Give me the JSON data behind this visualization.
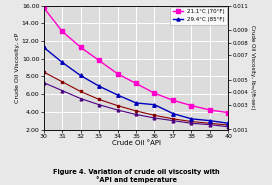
{
  "x": [
    30,
    31,
    32,
    33,
    34,
    35,
    36,
    37,
    38,
    39,
    40
  ],
  "y_pink": [
    15.8,
    13.1,
    11.3,
    9.8,
    8.3,
    7.2,
    6.1,
    5.3,
    4.7,
    4.2,
    3.9
  ],
  "y_blue": [
    11.3,
    9.6,
    8.1,
    6.9,
    5.9,
    5.0,
    4.8,
    3.8,
    3.2,
    3.0,
    2.7
  ],
  "y_darkred": [
    8.5,
    7.4,
    6.3,
    5.4,
    4.7,
    4.1,
    3.6,
    3.2,
    2.9,
    2.7,
    2.5
  ],
  "y_darkblue": [
    7.3,
    6.4,
    5.5,
    4.8,
    4.2,
    3.7,
    3.3,
    3.0,
    2.7,
    2.55,
    2.3
  ],
  "color_pink": "#FF00CC",
  "color_blue": "#0000BB",
  "color_darkred": "#8B0000",
  "color_darkblue": "#4B0082",
  "marker_pink": "s",
  "marker_blue": "^",
  "marker_darkred": "s",
  "marker_darkblue": "^",
  "xlabel": "Crude Oil °API",
  "ylabel_left": "Crude Oil Viscosity, cP",
  "ylabel_right": "Crude Oil Viscosity, lbₘ/(ft-sec)",
  "ylim_left": [
    2.0,
    16.0
  ],
  "ylim_right": [
    0.001,
    0.011
  ],
  "xlim": [
    30,
    40
  ],
  "yticks_left": [
    2.0,
    4.0,
    6.0,
    8.0,
    10.0,
    12.0,
    14.0,
    16.0
  ],
  "yticks_right": [
    0.001,
    0.003,
    0.004,
    0.005,
    0.007,
    0.008,
    0.009,
    0.011
  ],
  "xticks": [
    30,
    31,
    32,
    33,
    34,
    35,
    36,
    37,
    38,
    39,
    40
  ],
  "label_70F": "21.1°C (70°F)",
  "label_85F": "29.4°C (85°F)",
  "title": "Figure 4. Variation of crude oil viscosity with\n°API and temperature",
  "bg_color": "#DCDCDC",
  "fig_color": "#E8E8E8",
  "grid_color": "#FFFFFF"
}
